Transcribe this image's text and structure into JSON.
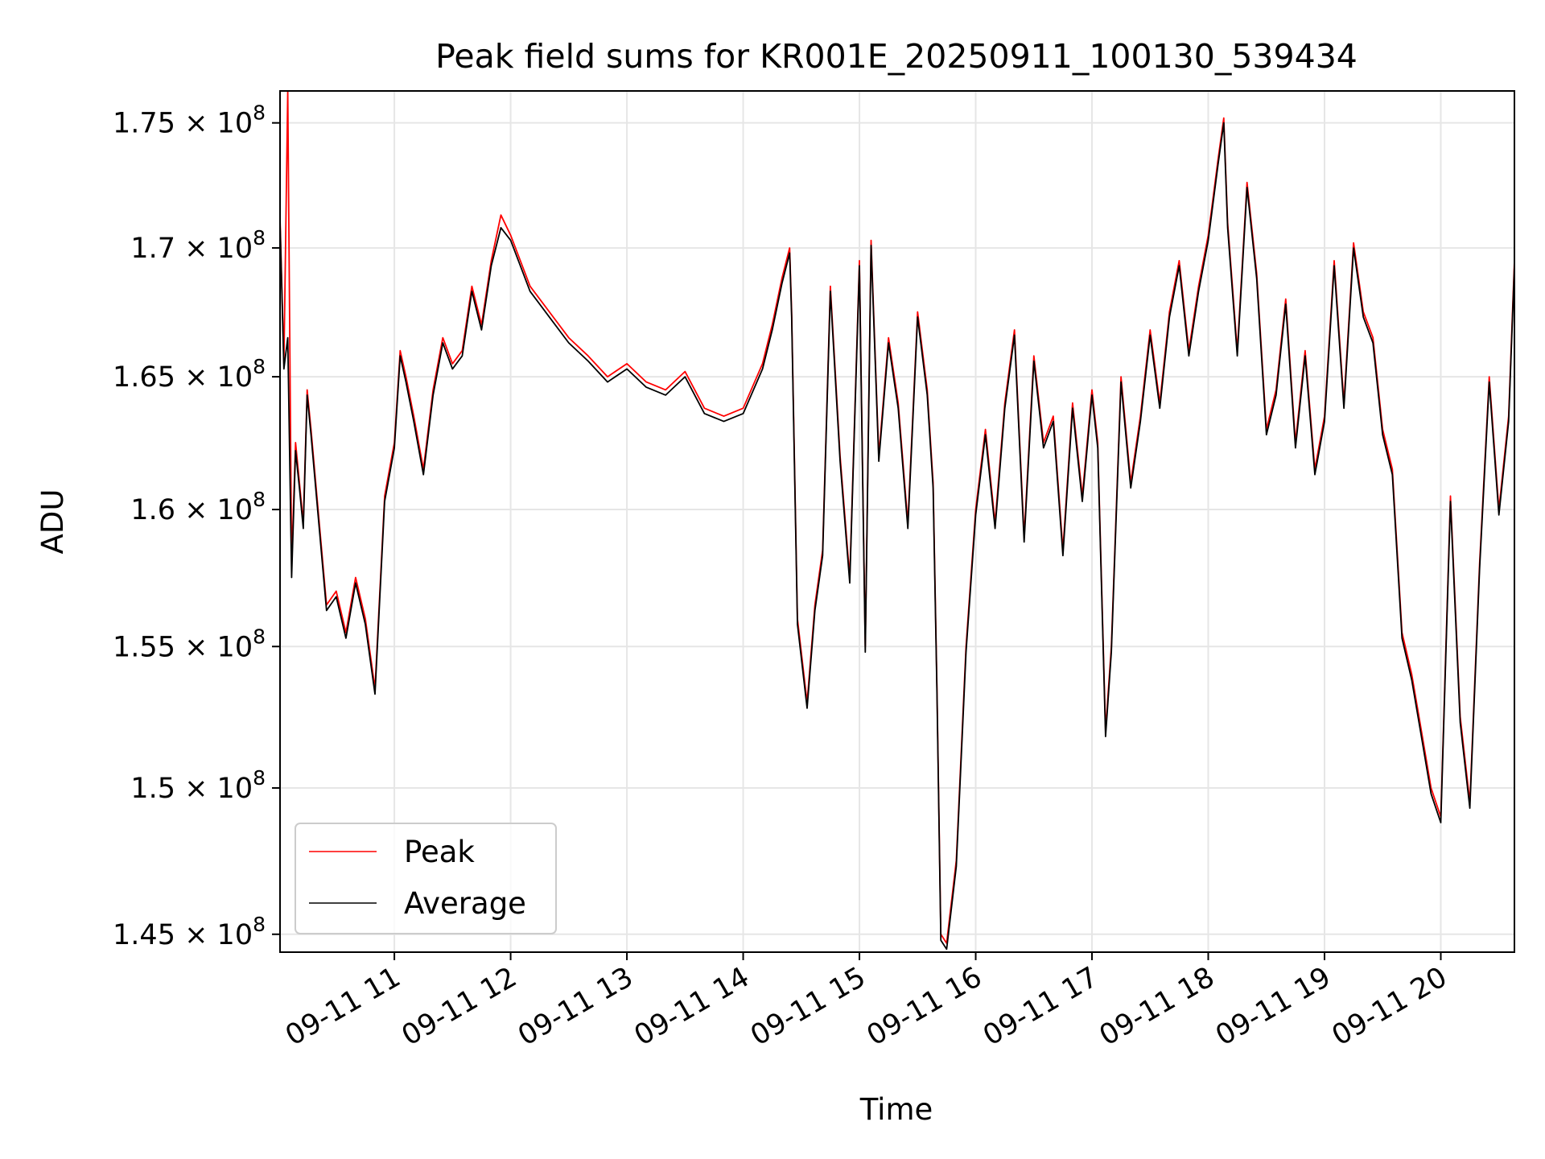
{
  "chart_data": {
    "type": "line",
    "title": "Peak field sums for KR001E_20250911_100130_539434",
    "xlabel": "Time",
    "ylabel": "ADU",
    "x_range": [
      "2025-09-11 10:01",
      "2025-09-11 20:38"
    ],
    "ylim": [
      144400000,
      176300000
    ],
    "grid": true,
    "legend_position": "lower-left",
    "x_ticks": [
      {
        "value": "2025-09-11 11:00",
        "label": "09-11 11"
      },
      {
        "value": "2025-09-11 12:00",
        "label": "09-11 12"
      },
      {
        "value": "2025-09-11 13:00",
        "label": "09-11 13"
      },
      {
        "value": "2025-09-11 14:00",
        "label": "09-11 14"
      },
      {
        "value": "2025-09-11 15:00",
        "label": "09-11 15"
      },
      {
        "value": "2025-09-11 16:00",
        "label": "09-11 16"
      },
      {
        "value": "2025-09-11 17:00",
        "label": "09-11 17"
      },
      {
        "value": "2025-09-11 18:00",
        "label": "09-11 18"
      },
      {
        "value": "2025-09-11 19:00",
        "label": "09-11 19"
      },
      {
        "value": "2025-09-11 20:00",
        "label": "09-11 20"
      }
    ],
    "y_ticks": [
      {
        "value": 145000000,
        "mantissa": "1.45",
        "exponent": "8"
      },
      {
        "value": 150000000,
        "mantissa": "1.5",
        "exponent": "8"
      },
      {
        "value": 155000000,
        "mantissa": "1.55",
        "exponent": "8"
      },
      {
        "value": 160000000,
        "mantissa": "1.6",
        "exponent": "8"
      },
      {
        "value": 165000000,
        "mantissa": "1.65",
        "exponent": "8"
      },
      {
        "value": 170000000,
        "mantissa": "1.7",
        "exponent": "8"
      },
      {
        "value": 175000000,
        "mantissa": "1.75",
        "exponent": "8"
      }
    ],
    "x": [
      "10:01",
      "10:03",
      "10:05",
      "10:07",
      "10:09",
      "10:11",
      "10:13",
      "10:15",
      "10:17",
      "10:20",
      "10:25",
      "10:30",
      "10:35",
      "10:40",
      "10:45",
      "10:50",
      "10:55",
      "11:00",
      "11:03",
      "11:06",
      "11:10",
      "11:15",
      "11:20",
      "11:25",
      "11:30",
      "11:35",
      "11:40",
      "11:45",
      "11:50",
      "11:55",
      "12:00",
      "12:10",
      "12:20",
      "12:30",
      "12:40",
      "12:50",
      "13:00",
      "13:10",
      "13:20",
      "13:30",
      "13:40",
      "13:50",
      "14:00",
      "14:10",
      "14:15",
      "14:20",
      "14:24",
      "14:25",
      "14:28",
      "14:33",
      "14:37",
      "14:41",
      "14:45",
      "14:50",
      "14:55",
      "15:00",
      "15:03",
      "15:06",
      "15:10",
      "15:15",
      "15:20",
      "15:25",
      "15:30",
      "15:35",
      "15:38",
      "15:40",
      "15:42",
      "15:45",
      "15:50",
      "15:55",
      "16:00",
      "16:05",
      "16:10",
      "16:15",
      "16:20",
      "16:25",
      "16:30",
      "16:35",
      "16:40",
      "16:45",
      "16:50",
      "16:55",
      "17:00",
      "17:03",
      "17:07",
      "17:10",
      "17:15",
      "17:20",
      "17:25",
      "17:30",
      "17:35",
      "17:40",
      "17:45",
      "17:50",
      "17:55",
      "18:00",
      "18:05",
      "18:08",
      "18:10",
      "18:15",
      "18:20",
      "18:25",
      "18:30",
      "18:35",
      "18:40",
      "18:45",
      "18:50",
      "18:55",
      "19:00",
      "19:05",
      "19:10",
      "19:15",
      "19:20",
      "19:25",
      "19:30",
      "19:35",
      "19:40",
      "19:45",
      "19:50",
      "19:55",
      "20:00",
      "20:05",
      "20:10",
      "20:15",
      "20:20",
      "20:25",
      "20:30",
      "20:35",
      "20:38"
    ],
    "series": [
      {
        "name": "Peak",
        "color": "#ff0000",
        "values": [
          171200000,
          165500000,
          176300000,
          158000000,
          162500000,
          161000000,
          159500000,
          164500000,
          163000000,
          160500000,
          156500000,
          157000000,
          155500000,
          157500000,
          156000000,
          153500000,
          160500000,
          162500000,
          166000000,
          165000000,
          163500000,
          161500000,
          164500000,
          166500000,
          165500000,
          166000000,
          168500000,
          167000000,
          169500000,
          171300000,
          170500000,
          168500000,
          167500000,
          166500000,
          165800000,
          165000000,
          165500000,
          164800000,
          164500000,
          165200000,
          163800000,
          163500000,
          163800000,
          165500000,
          167000000,
          168800000,
          170000000,
          167500000,
          156000000,
          153000000,
          156500000,
          158500000,
          168500000,
          162000000,
          157500000,
          169500000,
          155000000,
          170300000,
          162000000,
          166500000,
          164000000,
          159500000,
          167500000,
          164500000,
          161000000,
          153500000,
          145000000,
          144700000,
          147500000,
          155000000,
          160000000,
          163000000,
          159500000,
          164000000,
          166800000,
          159000000,
          165800000,
          162500000,
          163500000,
          158500000,
          164000000,
          160500000,
          164500000,
          162500000,
          152000000,
          155000000,
          165000000,
          161000000,
          163500000,
          166800000,
          164000000,
          167500000,
          169500000,
          166000000,
          168500000,
          170500000,
          173500000,
          175200000,
          171000000,
          166000000,
          172600000,
          169000000,
          163000000,
          164500000,
          168000000,
          162500000,
          166000000,
          161500000,
          163500000,
          169500000,
          164000000,
          170200000,
          167500000,
          166500000,
          163000000,
          161500000,
          155500000,
          154000000,
          152000000,
          150000000,
          149000000,
          160500000,
          152500000,
          149500000,
          158000000,
          165000000,
          160000000,
          163500000,
          169500000
        ]
      },
      {
        "name": "Average",
        "color": "#000000",
        "values": [
          171000000,
          165300000,
          166500000,
          157500000,
          162200000,
          160800000,
          159300000,
          164300000,
          162800000,
          160300000,
          156300000,
          156800000,
          155300000,
          157300000,
          155800000,
          153300000,
          160300000,
          162300000,
          165800000,
          164800000,
          163300000,
          161300000,
          164300000,
          166300000,
          165300000,
          165800000,
          168300000,
          166800000,
          169300000,
          170800000,
          170300000,
          168300000,
          167300000,
          166300000,
          165600000,
          164800000,
          165300000,
          164600000,
          164300000,
          165000000,
          163600000,
          163300000,
          163600000,
          165300000,
          166800000,
          168600000,
          169800000,
          167300000,
          155800000,
          152800000,
          156300000,
          158300000,
          168300000,
          161800000,
          157300000,
          169300000,
          154800000,
          170100000,
          161800000,
          166300000,
          163800000,
          159300000,
          167300000,
          164300000,
          160800000,
          153300000,
          144800000,
          144500000,
          147300000,
          154800000,
          159800000,
          162800000,
          159300000,
          163800000,
          166600000,
          158800000,
          165600000,
          162300000,
          163300000,
          158300000,
          163800000,
          160300000,
          164300000,
          162300000,
          151800000,
          154800000,
          164800000,
          160800000,
          163300000,
          166600000,
          163800000,
          167300000,
          169300000,
          165800000,
          168300000,
          170300000,
          173300000,
          175000000,
          170800000,
          165800000,
          172400000,
          168800000,
          162800000,
          164300000,
          167800000,
          162300000,
          165800000,
          161300000,
          163300000,
          169300000,
          163800000,
          170000000,
          167300000,
          166300000,
          162800000,
          161300000,
          155300000,
          153800000,
          151800000,
          149800000,
          148800000,
          160300000,
          152300000,
          149300000,
          157800000,
          164800000,
          159800000,
          163300000,
          169300000
        ]
      }
    ]
  }
}
